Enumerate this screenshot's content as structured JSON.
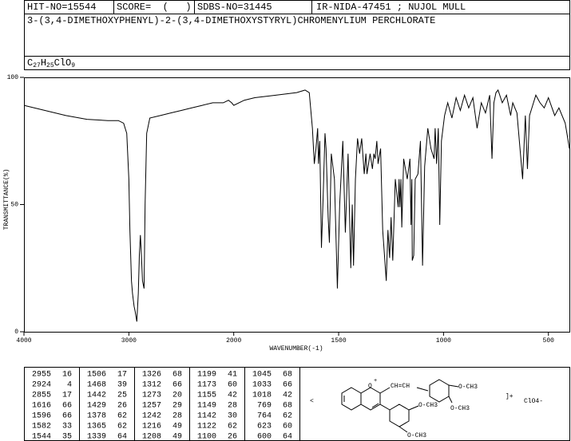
{
  "header": {
    "hit_no": "HIT-NO=15544",
    "score": "SCORE=  (   )",
    "sdbs_no": "SDBS-NO=31445",
    "ir_id": "IR-NIDA-47451 ; NUJOL MULL",
    "name": "3-(3,4-DIMETHOXYPHENYL)-2-(3,4-DIMETHOXYSTYRYL)CHROMENYLIUM PERCHLORATE",
    "formula": [
      "C",
      "27",
      "H",
      "25",
      "ClO",
      "9"
    ]
  },
  "chart_data": {
    "type": "line",
    "xlabel": "WAVENUMBER(-1)",
    "ylabel": "TRANSMITTANCE(%)",
    "color": "#000000",
    "xlim": [
      4000,
      400
    ],
    "x_scale_change": 2000,
    "xticks": [
      4000,
      3000,
      2000,
      1500,
      1000,
      500
    ],
    "ylim": [
      0,
      100
    ],
    "yticks": [
      0,
      50,
      100
    ],
    "x": [
      4000,
      3800,
      3600,
      3400,
      3200,
      3100,
      3050,
      3020,
      3000,
      2990,
      2975,
      2965,
      2950,
      2940,
      2924,
      2910,
      2900,
      2890,
      2880,
      2870,
      2855,
      2845,
      2830,
      2800,
      2700,
      2600,
      2500,
      2400,
      2300,
      2200,
      2100,
      2050,
      2020,
      2000,
      1950,
      1900,
      1800,
      1700,
      1660,
      1640,
      1625,
      1616,
      1608,
      1600,
      1596,
      1590,
      1582,
      1575,
      1565,
      1560,
      1550,
      1544,
      1535,
      1520,
      1506,
      1495,
      1480,
      1468,
      1455,
      1442,
      1435,
      1429,
      1420,
      1410,
      1400,
      1390,
      1378,
      1370,
      1365,
      1350,
      1339,
      1332,
      1326,
      1318,
      1312,
      1300,
      1290,
      1273,
      1265,
      1257,
      1250,
      1242,
      1230,
      1216,
      1212,
      1208,
      1203,
      1199,
      1190,
      1173,
      1160,
      1155,
      1151,
      1149,
      1142,
      1135,
      1122,
      1110,
      1100,
      1090,
      1075,
      1060,
      1045,
      1040,
      1033,
      1025,
      1018,
      1010,
      995,
      980,
      960,
      940,
      920,
      900,
      880,
      860,
      840,
      820,
      800,
      780,
      769,
      760,
      750,
      740,
      720,
      700,
      680,
      670,
      650,
      623,
      610,
      600,
      590,
      560,
      540,
      520,
      500,
      470,
      450,
      420,
      400
    ],
    "values": [
      89,
      87,
      85,
      83.5,
      83,
      83,
      82,
      78,
      60,
      40,
      20,
      15,
      10,
      8,
      4,
      15,
      30,
      38,
      30,
      20,
      17,
      50,
      78,
      84,
      85,
      86,
      87,
      88,
      89,
      90,
      90,
      91,
      90,
      89,
      91,
      92,
      93,
      94,
      95,
      94,
      80,
      66,
      72,
      80,
      66,
      75,
      33,
      50,
      78,
      72,
      45,
      35,
      70,
      60,
      17,
      50,
      75,
      39,
      70,
      25,
      50,
      26,
      60,
      76,
      70,
      76,
      62,
      70,
      62,
      70,
      64,
      70,
      68,
      75,
      66,
      72,
      40,
      20,
      40,
      29,
      45,
      28,
      60,
      49,
      60,
      49,
      60,
      41,
      68,
      60,
      68,
      42,
      60,
      28,
      30,
      60,
      62,
      75,
      26,
      65,
      80,
      72,
      68,
      80,
      66,
      80,
      42,
      75,
      85,
      90,
      84,
      92,
      87,
      93,
      88,
      92,
      80,
      90,
      86,
      93,
      68,
      90,
      94,
      95,
      90,
      93,
      85,
      90,
      86,
      60,
      85,
      64,
      85,
      93,
      90,
      88,
      92,
      85,
      88,
      82,
      72
    ]
  },
  "peaks": {
    "columns": [
      [
        [
          2955,
          16
        ],
        [
          2924,
          4
        ],
        [
          2855,
          17
        ],
        [
          1616,
          66
        ],
        [
          1596,
          66
        ],
        [
          1582,
          33
        ],
        [
          1544,
          35
        ]
      ],
      [
        [
          1506,
          17
        ],
        [
          1468,
          39
        ],
        [
          1442,
          25
        ],
        [
          1429,
          26
        ],
        [
          1378,
          62
        ],
        [
          1365,
          62
        ],
        [
          1339,
          64
        ]
      ],
      [
        [
          1326,
          68
        ],
        [
          1312,
          66
        ],
        [
          1273,
          20
        ],
        [
          1257,
          29
        ],
        [
          1242,
          28
        ],
        [
          1216,
          49
        ],
        [
          1208,
          49
        ]
      ],
      [
        [
          1199,
          41
        ],
        [
          1173,
          60
        ],
        [
          1155,
          42
        ],
        [
          1149,
          28
        ],
        [
          1142,
          30
        ],
        [
          1122,
          62
        ],
        [
          1100,
          26
        ]
      ],
      [
        [
          1045,
          68
        ],
        [
          1033,
          66
        ],
        [
          1018,
          42
        ],
        [
          769,
          68
        ],
        [
          764,
          62
        ],
        [
          623,
          60
        ],
        [
          600,
          64
        ]
      ]
    ]
  },
  "structure": {
    "labels": [
      "<",
      "O",
      "+",
      "CH=CH",
      "O-CH3",
      "O-CH3",
      "O-CH3",
      "O-CH3",
      "]+",
      "ClO4-"
    ]
  }
}
